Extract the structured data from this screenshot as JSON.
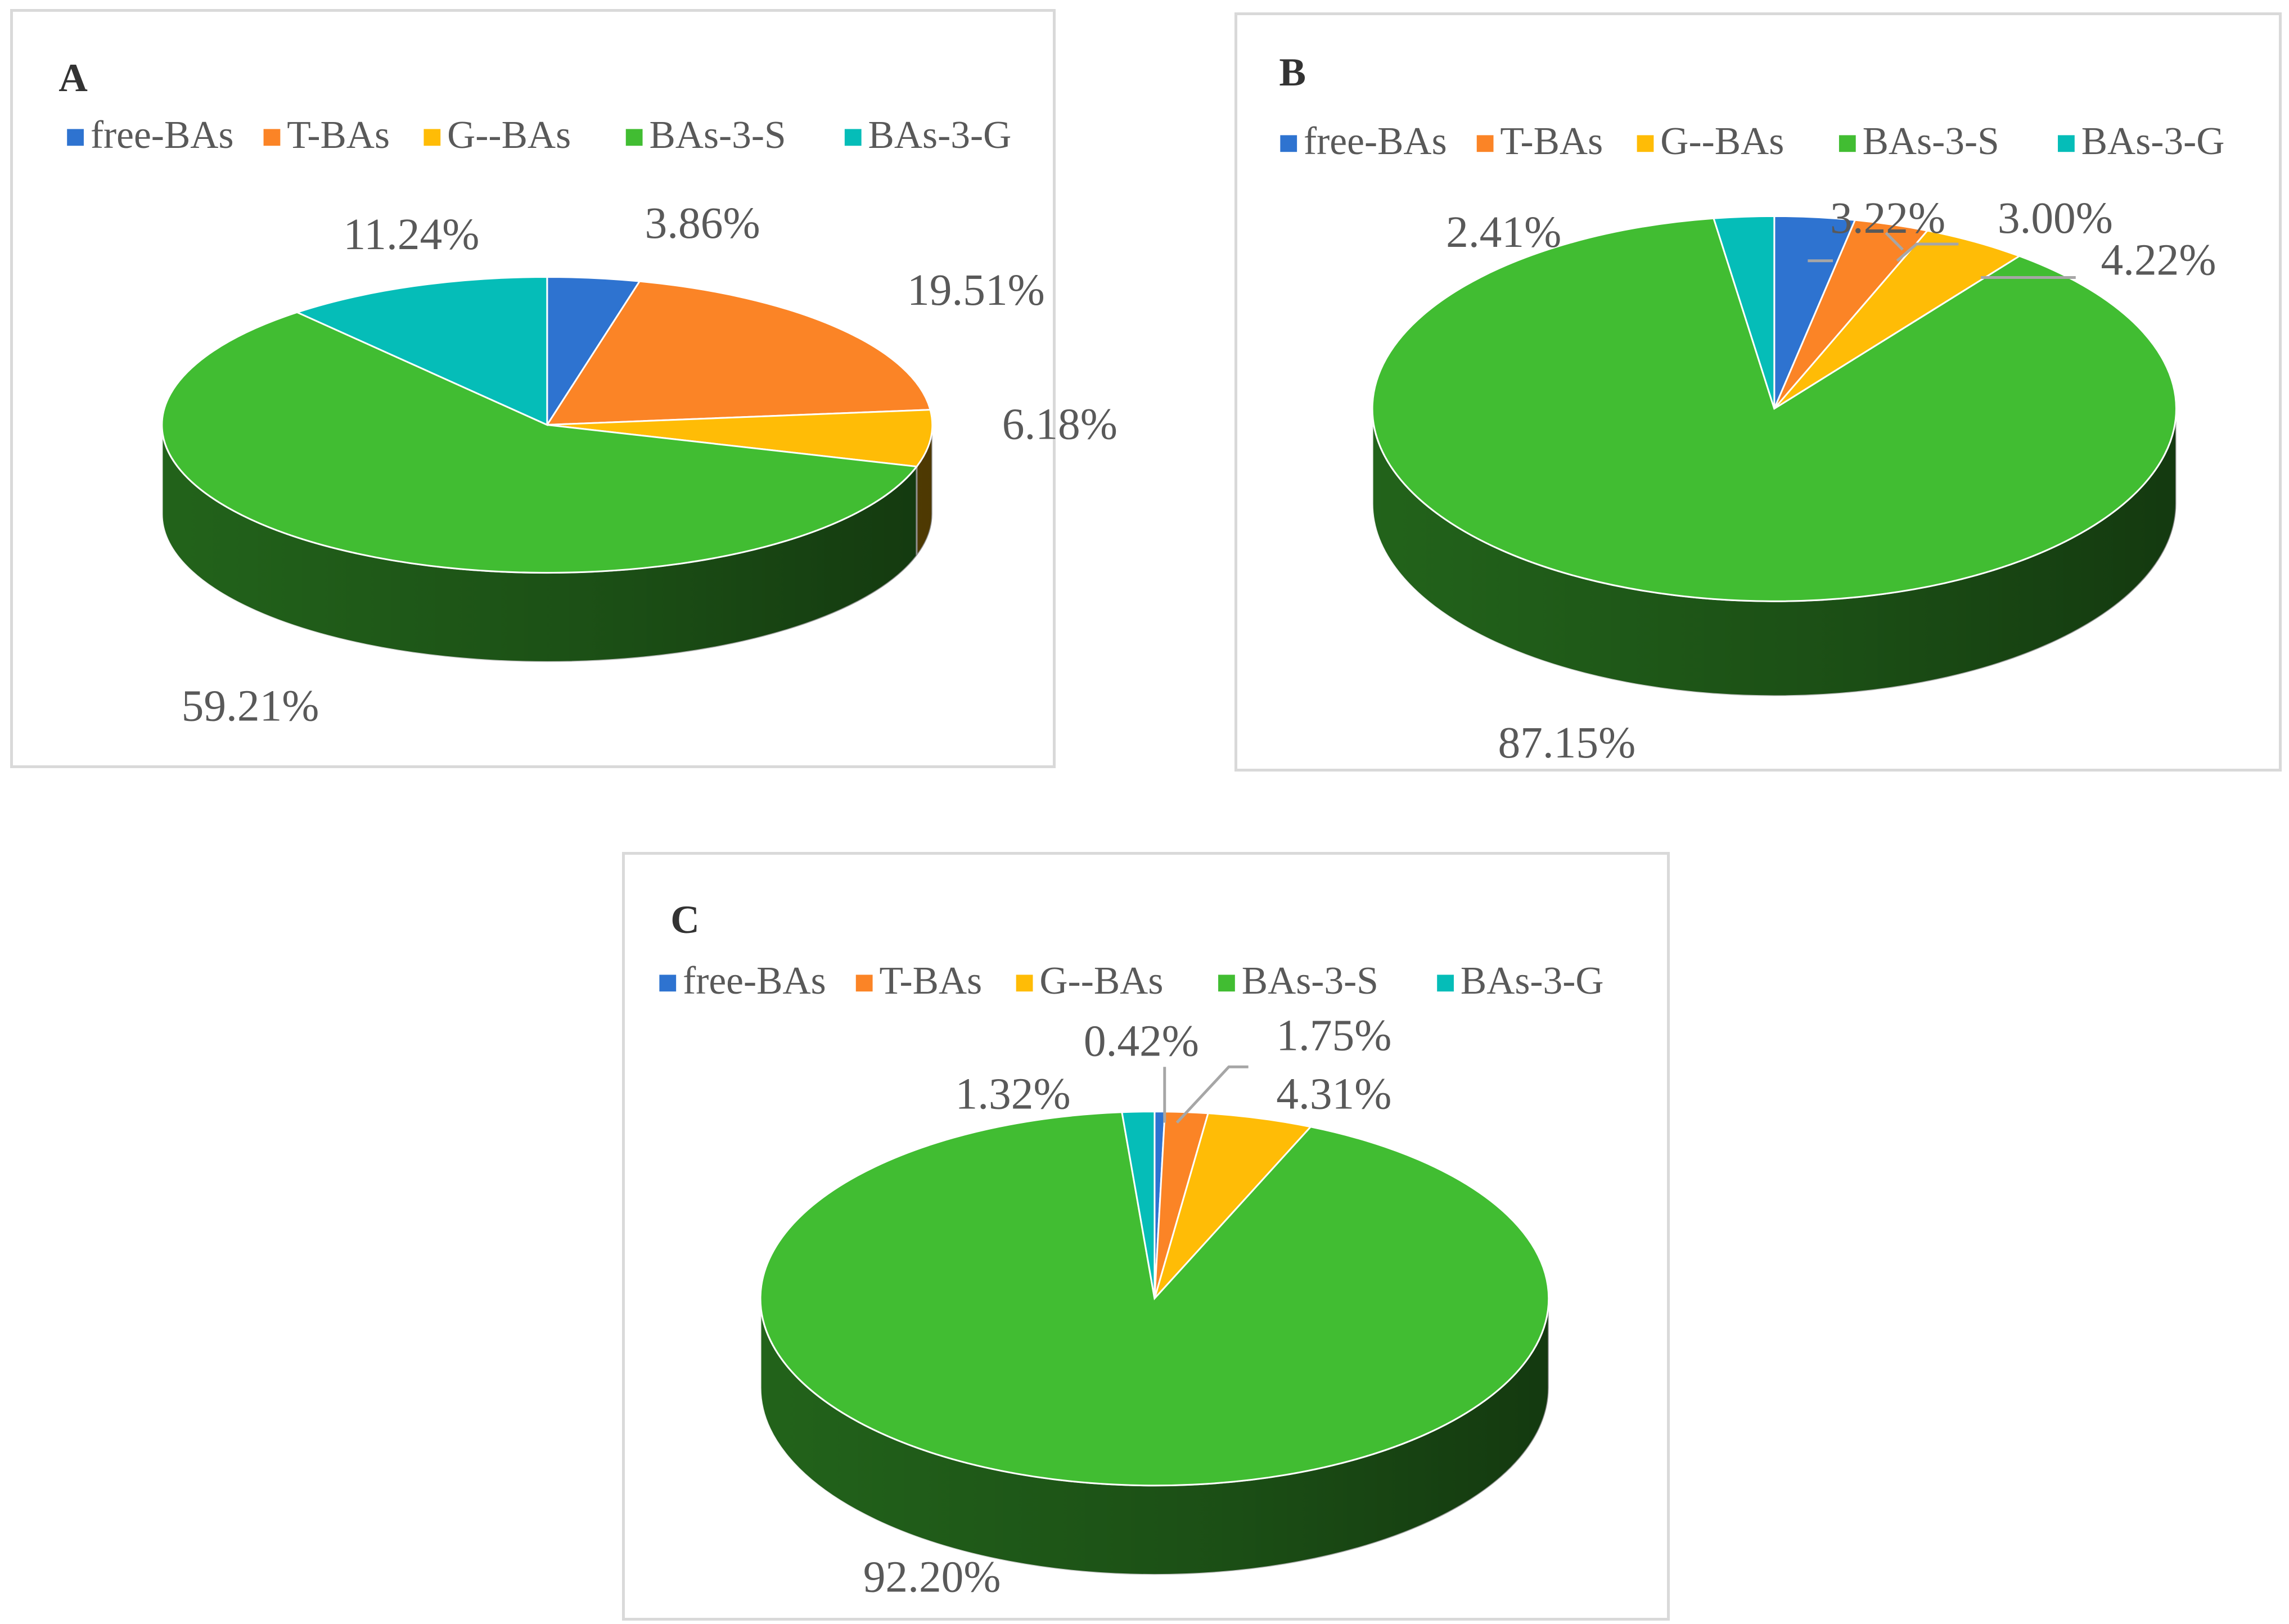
{
  "colors": {
    "free_BAs": "#2e73d0",
    "T_BAs": "#fb8426",
    "G_BAs": "#ffbc06",
    "BAs_3_S": "#41bd32",
    "BAs_3_G": "#05bdb8",
    "text": "#595959",
    "border": "#d9d9d9"
  },
  "chart_data": [
    {
      "type": "pie",
      "panel": "A",
      "style": "3d",
      "legend": [
        "free-BAs",
        "T-BAs",
        "G--BAs",
        "BAs-3-S",
        "BAs-3-G"
      ],
      "legend_position": "top",
      "values": [
        3.86,
        19.51,
        6.18,
        59.21,
        11.24
      ],
      "labels": [
        "3.86%",
        "19.51%",
        "6.18%",
        "59.21%",
        "11.24%"
      ]
    },
    {
      "type": "pie",
      "panel": "B",
      "style": "3d",
      "legend": [
        "free-BAs",
        "T-BAs",
        "G--BAs",
        "BAs-3-S",
        "BAs-3-G"
      ],
      "legend_position": "top",
      "values": [
        3.22,
        3.0,
        4.22,
        87.15,
        2.41
      ],
      "labels": [
        "3.22%",
        "3.00%",
        "4.22%",
        "87.15%",
        "2.41%"
      ]
    },
    {
      "type": "pie",
      "panel": "C",
      "style": "3d",
      "legend": [
        "free-BAs",
        "T-BAs",
        "G--BAs",
        "BAs-3-S",
        "BAs-3-G"
      ],
      "legend_position": "top",
      "values": [
        0.42,
        1.75,
        4.31,
        92.2,
        1.32
      ],
      "labels": [
        "0.42%",
        "1.75%",
        "4.31%",
        "92.20%",
        "1.32%"
      ]
    }
  ]
}
